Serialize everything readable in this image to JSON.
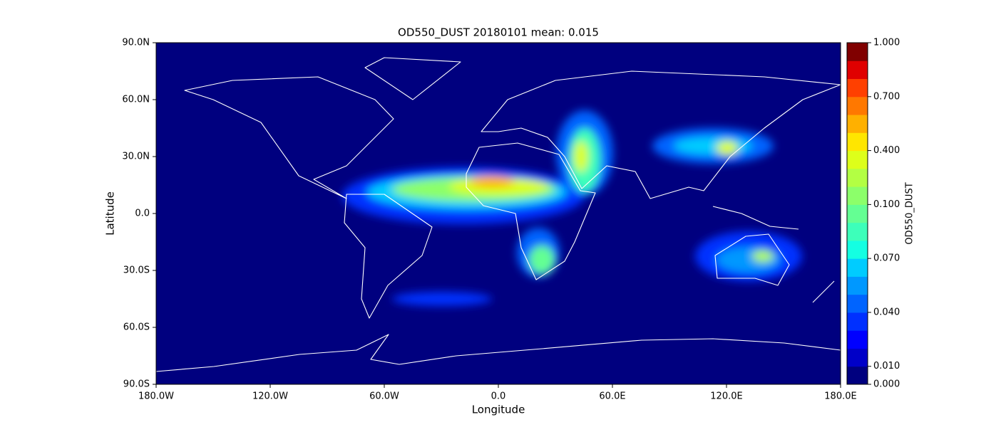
{
  "chart_data": {
    "type": "contour_map",
    "title": "OD550_DUST 20180101 mean: 0.015",
    "x_label": "Longitude",
    "y_label": "Latitude",
    "xlim": [
      -180,
      180
    ],
    "ylim": [
      -90,
      90
    ],
    "xticks": [
      {
        "value": -180,
        "label": "180.0W"
      },
      {
        "value": -120,
        "label": "120.0W"
      },
      {
        "value": -60,
        "label": "60.0W"
      },
      {
        "value": 0,
        "label": "0.0"
      },
      {
        "value": 60,
        "label": "60.0E"
      },
      {
        "value": 120,
        "label": "120.0E"
      },
      {
        "value": 180,
        "label": "180.0E"
      }
    ],
    "yticks": [
      {
        "value": -90,
        "label": "90.0S"
      },
      {
        "value": -60,
        "label": "60.0S"
      },
      {
        "value": -30,
        "label": "30.0S"
      },
      {
        "value": 0,
        "label": "0.0"
      },
      {
        "value": 30,
        "label": "30.0N"
      },
      {
        "value": 60,
        "label": "60.0N"
      },
      {
        "value": 90,
        "label": "90.0N"
      }
    ],
    "colorbar": {
      "label": "OD550_DUST",
      "levels": [
        0,
        0.01,
        0.02,
        0.03,
        0.04,
        0.05,
        0.06,
        0.07,
        0.08,
        0.09,
        0.1,
        0.2,
        0.3,
        0.4,
        0.5,
        0.6,
        0.7,
        0.8,
        0.9,
        1.0
      ],
      "colors": [
        "#00007f",
        "#0000c8",
        "#0000ff",
        "#0030ff",
        "#0064ff",
        "#0098ff",
        "#00ccff",
        "#14ffe2",
        "#3dffba",
        "#64ff93",
        "#8cff6a",
        "#b3ff43",
        "#ddff1a",
        "#ffe600",
        "#ffb000",
        "#ff7800",
        "#ff4000",
        "#e00000",
        "#800000"
      ],
      "ticks": [
        {
          "value": 0,
          "label": "0.000"
        },
        {
          "value": 0.01,
          "label": "0.010"
        },
        {
          "value": 0.04,
          "label": "0.040"
        },
        {
          "value": 0.07,
          "label": "0.070"
        },
        {
          "value": 0.1,
          "label": "0.100"
        },
        {
          "value": 0.4,
          "label": "0.400"
        },
        {
          "value": 0.7,
          "label": "0.700"
        },
        {
          "value": 1.0,
          "label": "1.000"
        }
      ]
    }
  }
}
